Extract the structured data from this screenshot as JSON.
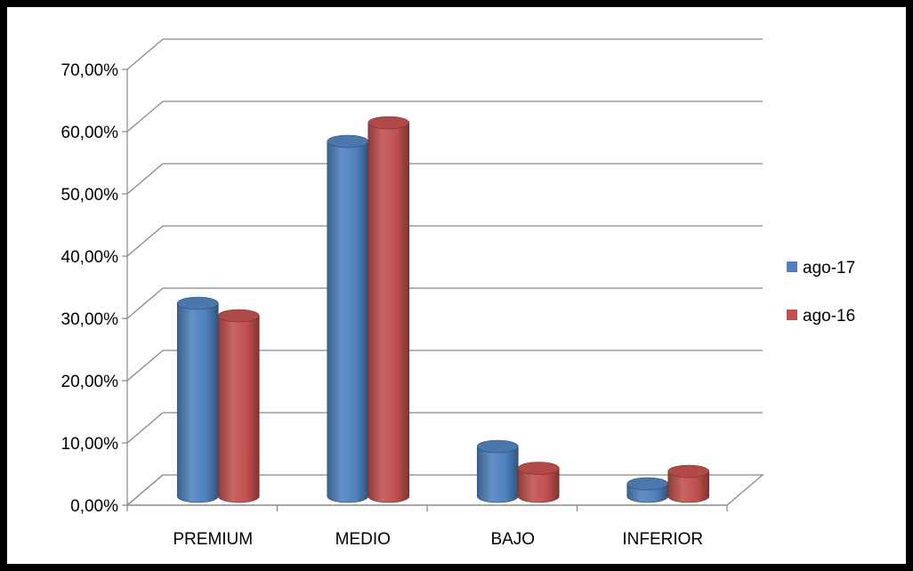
{
  "chart_data": {
    "type": "bar",
    "categories": [
      "PREMIUM",
      "MEDIO",
      "BAJO",
      "INFERIOR"
    ],
    "series": [
      {
        "name": "ago-17",
        "color": "#4F81BD",
        "values": [
          31.0,
          57.0,
          8.0,
          2.0
        ]
      },
      {
        "name": "ago-16",
        "color": "#C0504D",
        "values": [
          29.0,
          60.0,
          4.5,
          4.0
        ]
      }
    ],
    "y_ticks": [
      "0,00%",
      "10,00%",
      "20,00%",
      "30,00%",
      "40,00%",
      "50,00%",
      "60,00%",
      "70,00%"
    ],
    "ylim": [
      0,
      70
    ],
    "grid": true,
    "three_d": true,
    "legend_position": "right"
  }
}
